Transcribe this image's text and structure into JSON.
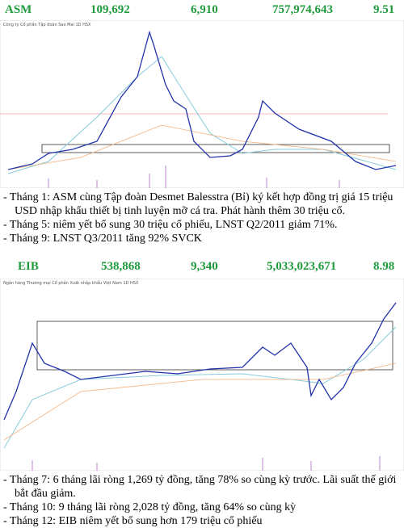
{
  "sections": [
    {
      "ticker": "ASM",
      "values": [
        "109,692",
        "6,910",
        "757,974,643",
        "9.51"
      ],
      "chart_caption": "Công ty Cổ phần Tập đoàn Sao Mai  1D  HSX",
      "notes": [
        "- Tháng 1: ASM cùng Tập đoàn Desmet Balesstra (Bỉ) ký kết hợp đồng trị giá 15 triệu USD nhập khẩu thiết bị tinh luyện mỡ cá tra. Phát hành thêm 30 triệu cổ.",
        "- Tháng 5: niêm yết bổ sung 30 triệu cổ phiếu, LNST Q2/2011 giảm 71%.",
        "- Tháng 9: LNST Q3/2011 tăng 92% SVCK"
      ]
    },
    {
      "ticker": "EIB",
      "values": [
        "538,868",
        "9,340",
        "5,033,023,671",
        "8.98"
      ],
      "chart_caption": "Ngân hàng Thương mại Cổ phần Xuất nhập khẩu Việt Nam  1D  HSX",
      "notes": [
        "- Tháng 7: 6 tháng lãi ròng 1,269 tỷ đồng, tăng 78% so cùng kỳ trước. Lãi suất thế giới bắt đầu giảm.",
        "- Tháng 10: 9 tháng lãi ròng 2,028 tỷ đồng, tăng 64% so cùng kỳ",
        "- Tháng 12: EIB niêm yết bổ sung hơn 179 triệu cổ phiếu"
      ]
    }
  ]
}
